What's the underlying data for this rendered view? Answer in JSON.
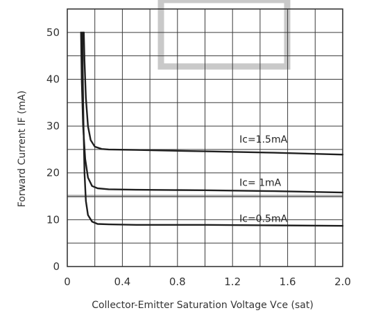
{
  "chart_data": {
    "type": "line",
    "title": "",
    "xlabel": "Collector-Emitter Saturation Voltage Vce (sat)",
    "ylabel": "Forward Current IF (mA)",
    "xlim": [
      0,
      2.0
    ],
    "ylim": [
      0,
      55
    ],
    "grid": true,
    "x_ticks": [
      "0",
      "0.4",
      "0.8",
      "1.2",
      "1.6",
      "2.0"
    ],
    "y_ticks": [
      "0",
      "10",
      "20",
      "30",
      "40",
      "50"
    ],
    "series": [
      {
        "name": "Ic=1.5mA",
        "x": [
          0.12,
          0.125,
          0.135,
          0.15,
          0.17,
          0.2,
          0.25,
          0.3,
          0.5,
          1.0,
          1.5,
          2.0
        ],
        "y": [
          50,
          44,
          36,
          30,
          27,
          25.6,
          25.1,
          25,
          24.9,
          24.6,
          24.3,
          23.9
        ]
      },
      {
        "name": "Ic= 1mA",
        "x": [
          0.1,
          0.105,
          0.115,
          0.13,
          0.15,
          0.18,
          0.22,
          0.3,
          0.5,
          1.0,
          1.5,
          2.0
        ],
        "y": [
          50,
          40,
          30,
          23,
          19,
          17.2,
          16.7,
          16.5,
          16.4,
          16.3,
          16.1,
          15.8
        ]
      },
      {
        "name": "Ic=0.5mA",
        "x": [
          0.11,
          0.113,
          0.118,
          0.125,
          0.135,
          0.15,
          0.18,
          0.22,
          0.3,
          0.5,
          1.0,
          1.5,
          2.0
        ],
        "y": [
          50,
          40,
          30,
          20,
          14,
          11,
          9.6,
          9.1,
          9,
          8.9,
          8.9,
          8.8,
          8.7
        ]
      }
    ],
    "labels": [
      {
        "text": "Ic=1.5mA",
        "x": 1.25,
        "y": 26.5
      },
      {
        "text": "Ic=  1mA",
        "x": 1.25,
        "y": 17.2
      },
      {
        "text": "Ic=0.5mA",
        "x": 1.25,
        "y": 9.5
      }
    ],
    "reference_line_y": 15
  },
  "colors": {
    "curve": "#1e1e1e",
    "grid": "#3a3a3a",
    "overlay": "#c9c9c9"
  }
}
